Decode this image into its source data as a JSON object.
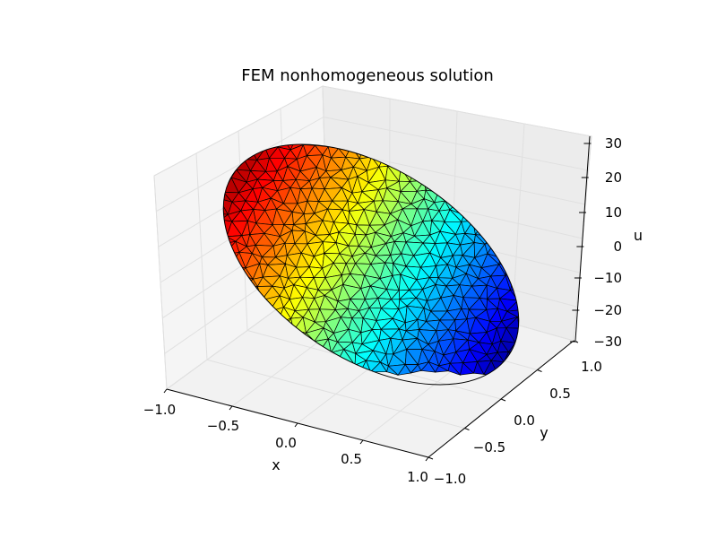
{
  "chart_data": {
    "type": "surface",
    "title": "FEM nonhomogeneous solution",
    "xlabel": "x",
    "ylabel": "y",
    "zlabel": "u",
    "xlim": [
      -1.0,
      1.0
    ],
    "ylim": [
      -1.0,
      1.0
    ],
    "zlim": [
      -30,
      30
    ],
    "x_ticks": [
      "−1.0",
      "−0.5",
      "0.0",
      "0.5",
      "1.0"
    ],
    "y_ticks": [
      "−1.0",
      "−0.5",
      "0.0",
      "0.5",
      "1.0"
    ],
    "z_ticks": [
      "−30",
      "−20",
      "−10",
      "0",
      "10",
      "20",
      "30"
    ],
    "domain": "unit disk",
    "surface": "planar, u rises from about -30 at (x,y)=(1,-1) direction to about 30 at (-1,1) direction",
    "colormap": "jet",
    "mesh_edge_color": "#000000",
    "grid": true
  }
}
